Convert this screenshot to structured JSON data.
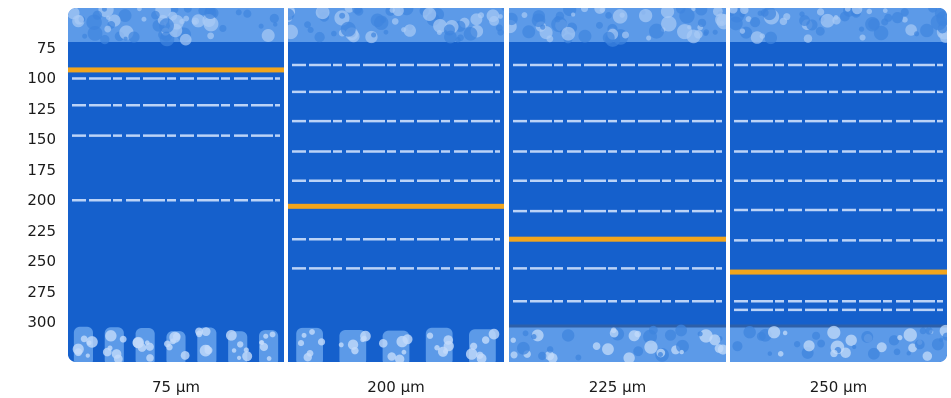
{
  "y_axis": {
    "tick_labels": [
      "75",
      "100",
      "125",
      "150",
      "175",
      "200",
      "225",
      "250",
      "275",
      "300"
    ],
    "tick_values": [
      75,
      100,
      125,
      150,
      175,
      200,
      225,
      250,
      275,
      300
    ]
  },
  "panels": [
    {
      "label": "75 μm",
      "marker_value": 93,
      "line_values": [
        100,
        122,
        147,
        200
      ],
      "bottom": "pillars"
    },
    {
      "label": "200 μm",
      "marker_value": 205,
      "line_values": [
        89,
        111,
        135,
        160,
        184,
        232,
        256
      ],
      "bottom": "pillars"
    },
    {
      "label": "225 μm",
      "marker_value": 232,
      "line_values": [
        89,
        111,
        135,
        160,
        184,
        209,
        256,
        283
      ],
      "bottom": "solid"
    },
    {
      "label": "250 μm",
      "marker_value": 259,
      "line_values": [
        89,
        111,
        135,
        160,
        184,
        208,
        233,
        283,
        290
      ],
      "bottom": "solid"
    }
  ],
  "colors": {
    "background": "#1560cc",
    "texture": "#5c9ae8",
    "streak": "#d8e8ff",
    "marker": "#f2a51c"
  }
}
